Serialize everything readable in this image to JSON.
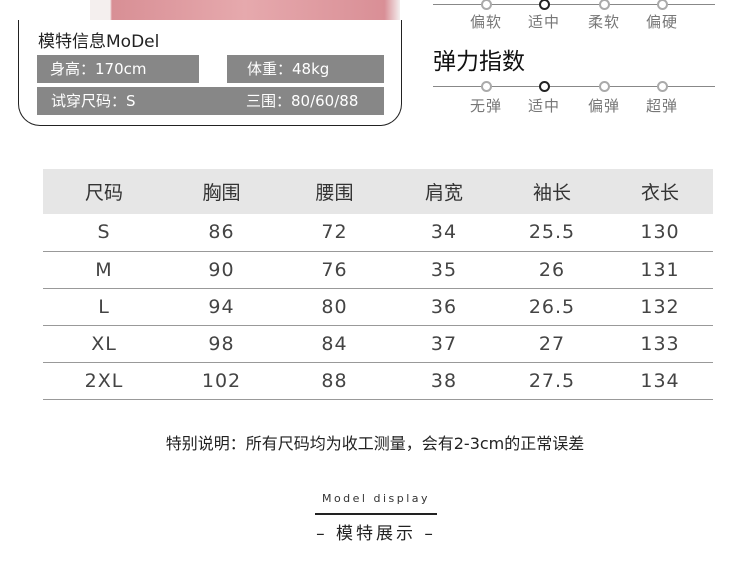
{
  "model": {
    "title": "模特信息MoDel",
    "height": "身高：170cm",
    "weight": "体重：48kg",
    "size": "试穿尺码：S",
    "measurements": "三围：80/60/88"
  },
  "softness": {
    "options": [
      "偏软",
      "适中",
      "柔软",
      "偏硬"
    ],
    "selected": 1
  },
  "elasticity": {
    "title": "弹力指数",
    "options": [
      "无弹",
      "适中",
      "偏弹",
      "超弹"
    ],
    "selected": 1
  },
  "size_table": {
    "headers": [
      "尺码",
      "胸围",
      "腰围",
      "肩宽",
      "袖长",
      "衣长"
    ],
    "rows": [
      [
        "S",
        "86",
        "72",
        "34",
        "25.5",
        "130"
      ],
      [
        "M",
        "90",
        "76",
        "35",
        "26",
        "131"
      ],
      [
        "L",
        "94",
        "80",
        "36",
        "26.5",
        "132"
      ],
      [
        "XL",
        "98",
        "84",
        "37",
        "27",
        "133"
      ],
      [
        "2XL",
        "102",
        "88",
        "38",
        "27.5",
        "134"
      ]
    ]
  },
  "note": "特别说明：所有尺码均为收工测量，会有2-3cm的正常误差",
  "model_display": {
    "en": "Model display",
    "cn": "– 模特展示 –"
  }
}
